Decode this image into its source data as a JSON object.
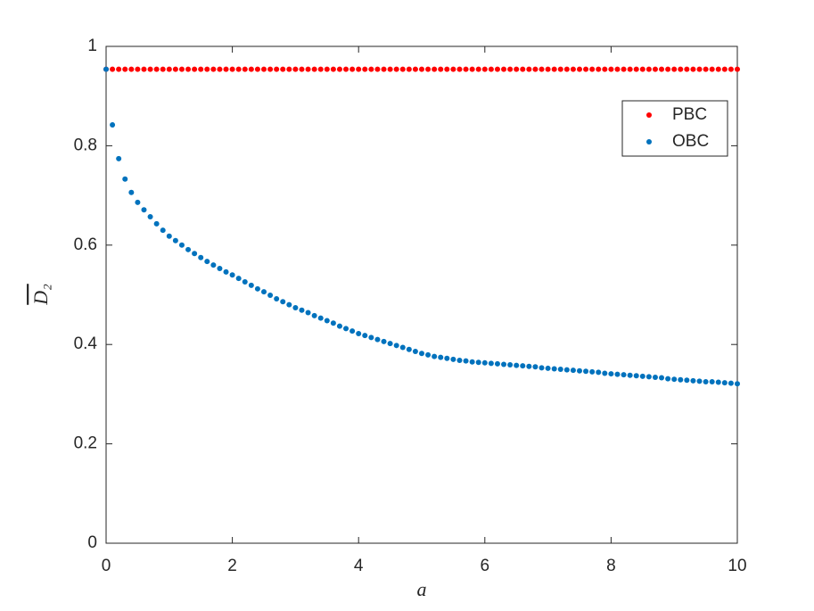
{
  "chart_data": {
    "type": "scatter",
    "xlabel": "a",
    "ylabel": "D₂",
    "x": [
      0,
      0.1,
      0.2,
      0.3,
      0.4,
      0.5,
      0.6,
      0.7,
      0.8,
      0.9,
      1,
      1.1,
      1.2,
      1.3,
      1.4,
      1.5,
      1.6,
      1.7,
      1.8,
      1.9,
      2,
      2.1,
      2.2,
      2.3,
      2.4,
      2.5,
      2.6,
      2.7,
      2.8,
      2.9,
      3,
      3.1,
      3.2,
      3.3,
      3.4,
      3.5,
      3.6,
      3.7,
      3.8,
      3.9,
      4,
      4.1,
      4.2,
      4.3,
      4.4,
      4.5,
      4.6,
      4.7,
      4.8,
      4.9,
      5,
      5.1,
      5.2,
      5.3,
      5.4,
      5.5,
      5.6,
      5.7,
      5.8,
      5.9,
      6,
      6.1,
      6.2,
      6.3,
      6.4,
      6.5,
      6.6,
      6.7,
      6.8,
      6.9,
      7,
      7.1,
      7.2,
      7.3,
      7.4,
      7.5,
      7.6,
      7.7,
      7.8,
      7.9,
      8,
      8.1,
      8.2,
      8.3,
      8.4,
      8.5,
      8.6,
      8.7,
      8.8,
      8.9,
      9,
      9.1,
      9.2,
      9.3,
      9.4,
      9.5,
      9.6,
      9.7,
      9.8,
      9.9,
      10
    ],
    "series": [
      {
        "name": "PBC",
        "color": "#ff0000",
        "values": [
          0.954,
          0.954,
          0.954,
          0.954,
          0.954,
          0.954,
          0.954,
          0.954,
          0.954,
          0.954,
          0.954,
          0.954,
          0.954,
          0.954,
          0.954,
          0.954,
          0.954,
          0.954,
          0.954,
          0.954,
          0.954,
          0.954,
          0.954,
          0.954,
          0.954,
          0.954,
          0.954,
          0.954,
          0.954,
          0.954,
          0.954,
          0.954,
          0.954,
          0.954,
          0.954,
          0.954,
          0.954,
          0.954,
          0.954,
          0.954,
          0.954,
          0.954,
          0.954,
          0.954,
          0.954,
          0.954,
          0.954,
          0.954,
          0.954,
          0.954,
          0.954,
          0.954,
          0.954,
          0.954,
          0.954,
          0.954,
          0.954,
          0.954,
          0.954,
          0.954,
          0.954,
          0.954,
          0.954,
          0.954,
          0.954,
          0.954,
          0.954,
          0.954,
          0.954,
          0.954,
          0.954,
          0.954,
          0.954,
          0.954,
          0.954,
          0.954,
          0.954,
          0.954,
          0.954,
          0.954,
          0.954,
          0.954,
          0.954,
          0.954,
          0.954,
          0.954,
          0.954,
          0.954,
          0.954,
          0.954,
          0.954,
          0.954,
          0.954,
          0.954,
          0.954,
          0.954,
          0.954,
          0.954,
          0.954,
          0.954,
          0.954
        ]
      },
      {
        "name": "OBC",
        "color": "#0072bd",
        "values": [
          0.954,
          0.842,
          0.774,
          0.733,
          0.706,
          0.686,
          0.671,
          0.657,
          0.643,
          0.63,
          0.618,
          0.609,
          0.6,
          0.591,
          0.583,
          0.575,
          0.567,
          0.56,
          0.553,
          0.546,
          0.54,
          0.533,
          0.526,
          0.519,
          0.512,
          0.506,
          0.499,
          0.492,
          0.486,
          0.48,
          0.474,
          0.469,
          0.464,
          0.458,
          0.453,
          0.448,
          0.443,
          0.437,
          0.432,
          0.427,
          0.422,
          0.418,
          0.414,
          0.41,
          0.406,
          0.402,
          0.398,
          0.394,
          0.39,
          0.386,
          0.382,
          0.379,
          0.376,
          0.374,
          0.372,
          0.37,
          0.368,
          0.367,
          0.365,
          0.364,
          0.363,
          0.362,
          0.361,
          0.36,
          0.359,
          0.358,
          0.357,
          0.356,
          0.355,
          0.353,
          0.352,
          0.351,
          0.35,
          0.349,
          0.348,
          0.347,
          0.346,
          0.345,
          0.344,
          0.342,
          0.341,
          0.34,
          0.339,
          0.338,
          0.337,
          0.336,
          0.335,
          0.334,
          0.333,
          0.331,
          0.33,
          0.329,
          0.328,
          0.327,
          0.326,
          0.325,
          0.325,
          0.324,
          0.323,
          0.322,
          0.321
        ]
      }
    ],
    "xlim": [
      0,
      10
    ],
    "xticks": [
      0,
      2,
      4,
      6,
      8,
      10
    ],
    "ylim": [
      0,
      1
    ],
    "yticks": [
      0,
      0.2,
      0.4,
      0.6,
      0.8,
      1
    ],
    "legend": "top-right"
  }
}
